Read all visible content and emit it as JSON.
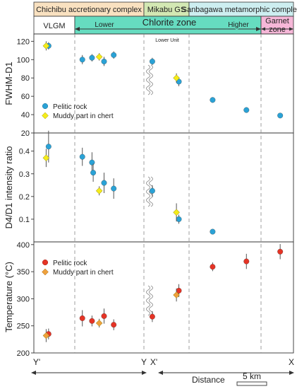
{
  "colors": {
    "chichibu": "#f9e1c0",
    "mikabu": "#d3e8b3",
    "sanbagawa": "#cdeef0",
    "chlorite": "#66dcc0",
    "garnet": "#f6b7d8",
    "pelitic_blue": "#2aa2d6",
    "muddy_yellow": "#f4ec1a",
    "pelitic_red": "#e53325",
    "muddy_orange": "#eea13c",
    "errorbar": "#555555"
  },
  "zones": {
    "chichibu": "Chichibu accretionary complex",
    "mikabu": "Mikabu GS",
    "sanbagawa": "Sanbagawa metamorphic complex",
    "vlgm": "VLGM",
    "lower": "Lower",
    "chlorite_zone": "Chlorite zone",
    "higher": "Higher",
    "garnet_zone_line1": "Garnet",
    "garnet_zone_line2": "zone",
    "lower_unit": "Lower Unit"
  },
  "bottom_axis": {
    "y_prime": "Y'",
    "y": "Y",
    "x_prime": "X'",
    "x": "X",
    "distance": "Distance",
    "scale_label": "5 km"
  },
  "chart_data": [
    {
      "type": "scatter",
      "ylabel": "FWHM-D1",
      "ylim": [
        20,
        128
      ],
      "yticks": [
        20,
        40,
        60,
        80,
        100,
        120
      ],
      "legend_position": "lower-left",
      "series": [
        {
          "name": "Pelitic rock",
          "color": "pelitic_blue",
          "points": [
            {
              "x": 0.02,
              "y": 115,
              "err": 4
            },
            {
              "x": 0.16,
              "y": 100,
              "err": 5
            },
            {
              "x": 0.2,
              "y": 102,
              "err": 4
            },
            {
              "x": 0.25,
              "y": 98,
              "err": 5
            },
            {
              "x": 0.29,
              "y": 105,
              "err": 4
            },
            {
              "x": 0.45,
              "y": 98,
              "err": 4
            },
            {
              "x": 0.56,
              "y": 76,
              "err": 5
            },
            {
              "x": 0.7,
              "y": 56,
              "err": 3
            },
            {
              "x": 0.84,
              "y": 45,
              "err": 3
            },
            {
              "x": 0.98,
              "y": 39,
              "err": 2
            }
          ]
        },
        {
          "name": "Muddy part in chert",
          "color": "muddy_yellow",
          "points": [
            {
              "x": 0.01,
              "y": 115,
              "err": 5
            },
            {
              "x": 0.23,
              "y": 103,
              "err": 4
            },
            {
              "x": 0.55,
              "y": 80,
              "err": 5
            }
          ]
        }
      ]
    },
    {
      "type": "scatter",
      "ylabel": "D4/D1 intensity ratio",
      "ylim": [
        0,
        0.48
      ],
      "yticks": [
        0.1,
        0.2,
        0.3,
        0.4
      ],
      "series": [
        {
          "name": "Pelitic rock",
          "color": "pelitic_blue",
          "points": [
            {
              "x": 0.02,
              "y": 0.42,
              "err": 0.07
            },
            {
              "x": 0.16,
              "y": 0.375,
              "err": 0.04
            },
            {
              "x": 0.2,
              "y": 0.35,
              "err": 0.045
            },
            {
              "x": 0.205,
              "y": 0.305,
              "err": 0.04
            },
            {
              "x": 0.25,
              "y": 0.26,
              "err": 0.045
            },
            {
              "x": 0.29,
              "y": 0.235,
              "err": 0.045
            },
            {
              "x": 0.45,
              "y": 0.225,
              "err": 0.025
            },
            {
              "x": 0.56,
              "y": 0.1,
              "err": 0.02
            },
            {
              "x": 0.7,
              "y": 0.045,
              "err": 0.01
            }
          ]
        },
        {
          "name": "Muddy part in chert",
          "color": "muddy_yellow",
          "points": [
            {
              "x": 0.01,
              "y": 0.37,
              "err": 0.04
            },
            {
              "x": 0.23,
              "y": 0.225,
              "err": 0.02
            },
            {
              "x": 0.55,
              "y": 0.13,
              "err": 0.04
            }
          ]
        }
      ]
    },
    {
      "type": "scatter",
      "ylabel": "Temperature (°C)",
      "ylim": [
        200,
        405
      ],
      "yticks": [
        200,
        250,
        300,
        350,
        400
      ],
      "legend_position": "upper-left",
      "series": [
        {
          "name": "Pelitic rock",
          "color": "pelitic_red",
          "points": [
            {
              "x": 0.02,
              "y": 235,
              "err": 10
            },
            {
              "x": 0.16,
              "y": 264,
              "err": 15
            },
            {
              "x": 0.2,
              "y": 259,
              "err": 10
            },
            {
              "x": 0.25,
              "y": 268,
              "err": 14
            },
            {
              "x": 0.29,
              "y": 252,
              "err": 10
            },
            {
              "x": 0.45,
              "y": 267,
              "err": 10
            },
            {
              "x": 0.56,
              "y": 315,
              "err": 12
            },
            {
              "x": 0.7,
              "y": 359,
              "err": 8
            },
            {
              "x": 0.84,
              "y": 369,
              "err": 14
            },
            {
              "x": 0.98,
              "y": 387,
              "err": 14
            }
          ]
        },
        {
          "name": "Muddy part in chert",
          "color": "muddy_orange",
          "points": [
            {
              "x": 0.01,
              "y": 232,
              "err": 12
            },
            {
              "x": 0.23,
              "y": 255,
              "err": 8
            },
            {
              "x": 0.55,
              "y": 307,
              "err": 12
            }
          ]
        }
      ]
    }
  ]
}
